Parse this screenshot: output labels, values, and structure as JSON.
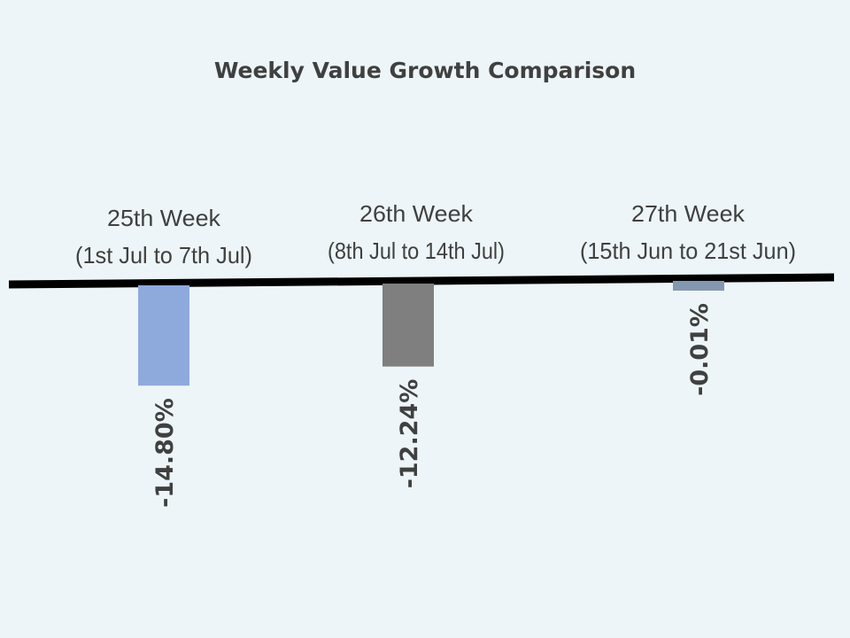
{
  "chart_data": {
    "type": "bar",
    "title": "Weekly Value Growth Comparison",
    "categories": [
      [
        "25th Week",
        "(1st Jul to 7th Jul)"
      ],
      [
        "26th Week",
        "(8th Jul to 14th Jul)"
      ],
      [
        "27th Week",
        "(15th Jun to 21st Jun)"
      ]
    ],
    "values": [
      -14.8,
      -12.24,
      -0.01
    ],
    "data_labels": [
      "-14.80%",
      "-12.24%",
      "-0.01%"
    ],
    "colors": [
      "#8eaadd",
      "#7f7f7f",
      "#8497b0"
    ],
    "xlabel": "",
    "ylabel": "",
    "grid": false,
    "legend": "none"
  }
}
